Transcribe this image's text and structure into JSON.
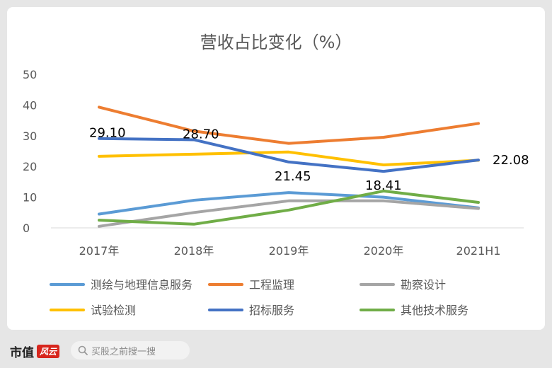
{
  "chart_data": {
    "type": "line",
    "title": "营收占比变化（%）",
    "categories": [
      "2017年",
      "2018年",
      "2019年",
      "2020年",
      "2021H1"
    ],
    "ylim": [
      0,
      50
    ],
    "yticks": [
      "0",
      "10",
      "20",
      "30",
      "40",
      "50"
    ],
    "grid": false,
    "legend_position": "bottom",
    "series": [
      {
        "name": "测绘与地理信息服务",
        "color": "#5b9bd5",
        "values": [
          4.5,
          9.0,
          11.5,
          10.0,
          6.5
        ],
        "labels": [
          "",
          "",
          "",
          "",
          ""
        ]
      },
      {
        "name": "工程监理",
        "color": "#ed7d31",
        "values": [
          39.3,
          31.5,
          27.5,
          29.5,
          34.0
        ],
        "labels": [
          "",
          "",
          "",
          "",
          ""
        ]
      },
      {
        "name": "勘察设计",
        "color": "#a5a5a5",
        "values": [
          0.5,
          5.0,
          8.8,
          8.8,
          6.3
        ],
        "labels": [
          "",
          "",
          "",
          "",
          ""
        ]
      },
      {
        "name": "试验检测",
        "color": "#ffc000",
        "values": [
          23.3,
          24.0,
          24.7,
          20.5,
          22.0
        ],
        "labels": [
          "",
          "",
          "",
          "",
          ""
        ]
      },
      {
        "name": "招标服务",
        "color": "#4472c4",
        "values": [
          29.1,
          28.7,
          21.45,
          18.41,
          22.08
        ],
        "labels": [
          "29.10",
          "28.70",
          "21.45",
          "18.41",
          "22.08"
        ]
      },
      {
        "name": "其他技术服务",
        "color": "#70ad47",
        "values": [
          2.5,
          1.2,
          5.8,
          12.0,
          8.3
        ],
        "labels": [
          "",
          "",
          "",
          "",
          ""
        ]
      }
    ]
  },
  "footer": {
    "brand": "市值",
    "brand_seal": "风云",
    "search_placeholder": "买股之前搜一搜",
    "search_icon": "search-icon"
  }
}
